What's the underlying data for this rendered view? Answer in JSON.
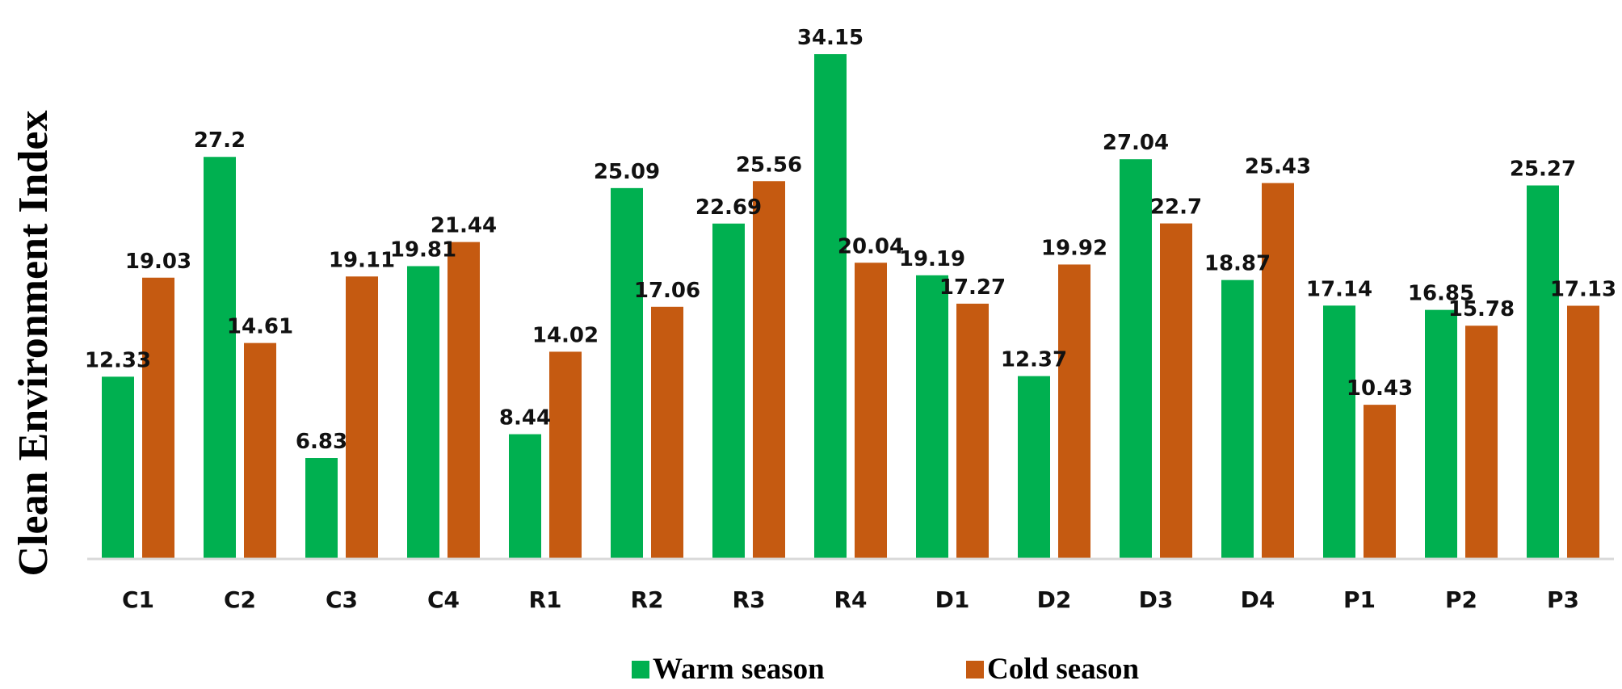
{
  "chart_data": {
    "type": "bar",
    "title": "",
    "xlabel": "",
    "ylabel": "Clean Environment Index",
    "ylim": [
      0,
      35
    ],
    "grid": false,
    "legend_position": "bottom-center",
    "categories": [
      "C1",
      "C2",
      "C3",
      "C4",
      "R1",
      "R2",
      "R3",
      "R4",
      "D1",
      "D2",
      "D3",
      "D4",
      "P1",
      "P2",
      "P3"
    ],
    "series": [
      {
        "name": "Warm season",
        "color": "#00b050",
        "values": [
          12.33,
          27.2,
          6.83,
          19.81,
          8.44,
          25.09,
          22.69,
          34.15,
          19.19,
          12.37,
          27.04,
          18.87,
          17.14,
          16.85,
          25.27
        ]
      },
      {
        "name": "Cold season",
        "color": "#c55a11",
        "values": [
          19.03,
          14.61,
          19.11,
          21.44,
          14.02,
          17.06,
          25.56,
          20.04,
          17.27,
          19.92,
          22.7,
          25.43,
          10.43,
          15.78,
          17.13
        ]
      }
    ],
    "data_labels": {
      "Warm season": [
        "12.33",
        "27.2",
        "6.83",
        "19.81",
        "8.44",
        "25.09",
        "22.69",
        "34.15",
        "19.19",
        "12.37",
        "27.04",
        "18.87",
        "17.14",
        "16.85",
        "25.27"
      ],
      "Cold season": [
        "19.03",
        "14.61",
        "19.11",
        "21.44",
        "14.02",
        "17.06",
        "25.56",
        "20.04",
        "17.27",
        "19.92",
        "22.7",
        "25.43",
        "10.43",
        "15.78",
        "17.13"
      ]
    },
    "axis_color": "#d9d9d9"
  }
}
